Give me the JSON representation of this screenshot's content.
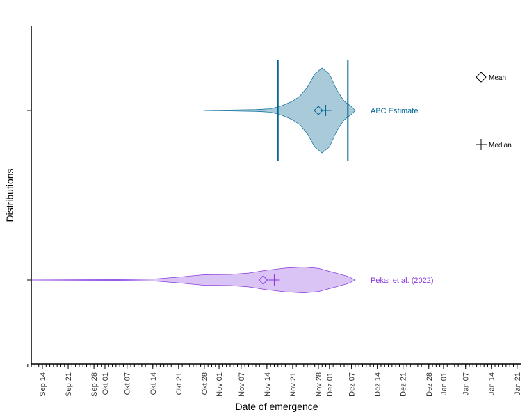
{
  "chart_data": {
    "type": "violin",
    "xlabel": "Date of emergence",
    "ylabel": "Distributions",
    "x_axis": {
      "type": "date",
      "range": [
        "2022-09-10",
        "2023-01-21"
      ],
      "ticks": [
        {
          "date": "2022-09-14",
          "label": "Sep 14"
        },
        {
          "date": "2022-09-21",
          "label": "Sep 21"
        },
        {
          "date": "2022-09-28",
          "label": "Sep 28"
        },
        {
          "date": "2022-10-01",
          "label": "Okt 01"
        },
        {
          "date": "2022-10-07",
          "label": "Okt 07"
        },
        {
          "date": "2022-10-14",
          "label": "Okt 14"
        },
        {
          "date": "2022-10-21",
          "label": "Okt 21"
        },
        {
          "date": "2022-10-28",
          "label": "Okt 28"
        },
        {
          "date": "2022-11-01",
          "label": "Nov 01"
        },
        {
          "date": "2022-11-07",
          "label": "Nov 07"
        },
        {
          "date": "2022-11-14",
          "label": "Nov 14"
        },
        {
          "date": "2022-11-21",
          "label": "Nov 21"
        },
        {
          "date": "2022-11-28",
          "label": "Nov 28"
        },
        {
          "date": "2022-12-01",
          "label": "Dez 01"
        },
        {
          "date": "2022-12-07",
          "label": "Dez 07"
        },
        {
          "date": "2022-12-14",
          "label": "Dez 14"
        },
        {
          "date": "2022-12-21",
          "label": "Dez 21"
        },
        {
          "date": "2022-12-28",
          "label": "Dez 28"
        },
        {
          "date": "2023-01-01",
          "label": "Jan 01"
        },
        {
          "date": "2023-01-07",
          "label": "Jan 07"
        },
        {
          "date": "2023-01-14",
          "label": "Jan 14"
        },
        {
          "date": "2023-01-21",
          "label": "Jan 21"
        }
      ]
    },
    "series": [
      {
        "name": "ABC Estimate",
        "color": "#006699",
        "fill": "#a9cbd9",
        "mean": "2022-11-28",
        "median": "2022-11-30",
        "interval": [
          "2022-11-17",
          "2022-12-06"
        ],
        "density": [
          {
            "date": "2022-10-28",
            "half_width": 0.0
          },
          {
            "date": "2022-11-04",
            "half_width": 0.01
          },
          {
            "date": "2022-11-11",
            "half_width": 0.02
          },
          {
            "date": "2022-11-15",
            "half_width": 0.04
          },
          {
            "date": "2022-11-18",
            "half_width": 0.11
          },
          {
            "date": "2022-11-21",
            "half_width": 0.22
          },
          {
            "date": "2022-11-23",
            "half_width": 0.34
          },
          {
            "date": "2022-11-25",
            "half_width": 0.55
          },
          {
            "date": "2022-11-27",
            "half_width": 0.86
          },
          {
            "date": "2022-11-29",
            "half_width": 1.0
          },
          {
            "date": "2022-12-01",
            "half_width": 0.86
          },
          {
            "date": "2022-12-03",
            "half_width": 0.48
          },
          {
            "date": "2022-12-05",
            "half_width": 0.22
          },
          {
            "date": "2022-12-07",
            "half_width": 0.09
          },
          {
            "date": "2022-12-08",
            "half_width": 0.0
          }
        ]
      },
      {
        "name": "Pekar et al. (2022)",
        "color": "#8833dd",
        "fill": "#d9c4f5",
        "mean": "2022-11-13",
        "median": "2022-11-16",
        "density": [
          {
            "date": "2022-09-10",
            "half_width": 0.0
          },
          {
            "date": "2022-09-28",
            "half_width": 0.02
          },
          {
            "date": "2022-10-07",
            "half_width": 0.04
          },
          {
            "date": "2022-10-14",
            "half_width": 0.07
          },
          {
            "date": "2022-10-21",
            "half_width": 0.22
          },
          {
            "date": "2022-10-28",
            "half_width": 0.4
          },
          {
            "date": "2022-11-04",
            "half_width": 0.42
          },
          {
            "date": "2022-11-09",
            "half_width": 0.52
          },
          {
            "date": "2022-11-14",
            "half_width": 0.74
          },
          {
            "date": "2022-11-19",
            "half_width": 0.9
          },
          {
            "date": "2022-11-24",
            "half_width": 0.98
          },
          {
            "date": "2022-11-28",
            "half_width": 0.88
          },
          {
            "date": "2022-12-02",
            "half_width": 0.58
          },
          {
            "date": "2022-12-06",
            "half_width": 0.28
          },
          {
            "date": "2022-12-08",
            "half_width": 0.0
          }
        ]
      }
    ],
    "legend": {
      "position": "right",
      "entries": [
        {
          "symbol": "diamond",
          "label": "Mean"
        },
        {
          "symbol": "cross",
          "label": "Median"
        }
      ]
    },
    "grid": false
  }
}
